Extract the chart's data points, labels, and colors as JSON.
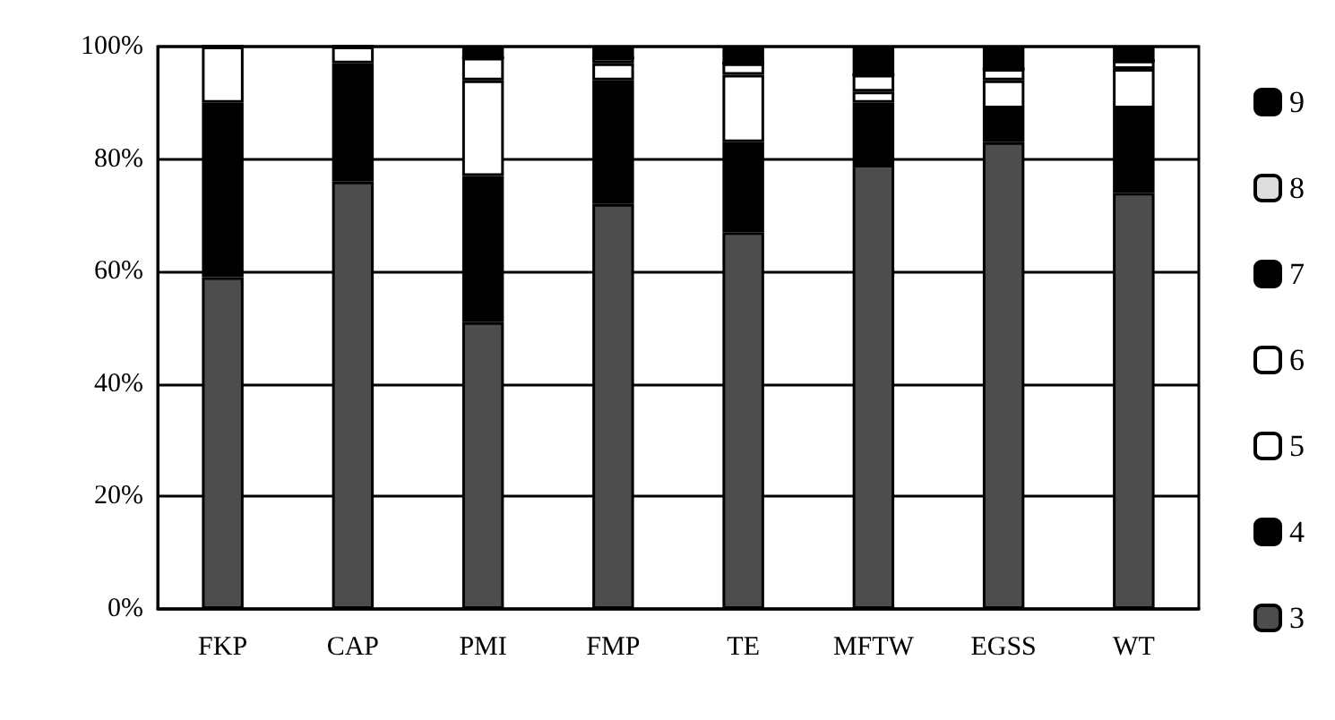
{
  "chart_data": {
    "type": "bar",
    "stacked": true,
    "categories": [
      "FKP",
      "CAP",
      "PMI",
      "FMP",
      "TE",
      "MFTW",
      "EGSS",
      "WT"
    ],
    "series": [
      {
        "name": "3",
        "color": "#4d4d4d",
        "values": [
          59,
          76,
          51,
          72,
          67,
          79,
          83,
          74
        ]
      },
      {
        "name": "4",
        "color": "#000000",
        "values": [
          31,
          21,
          26,
          22,
          16,
          11,
          6,
          15
        ]
      },
      {
        "name": "5",
        "color": "#ffffff",
        "values": [
          10,
          3,
          17,
          3,
          12,
          2,
          5,
          7
        ]
      },
      {
        "name": "6",
        "color": "#ffffff",
        "values": [
          0,
          0,
          4,
          1,
          2,
          3,
          2,
          1.5
        ]
      },
      {
        "name": "7",
        "color": "#000000",
        "values": [
          0,
          0,
          0,
          0,
          0,
          0,
          0,
          0
        ]
      },
      {
        "name": "8",
        "color": "#dddddd",
        "values": [
          0,
          0,
          0,
          0,
          0,
          0,
          0,
          0
        ]
      },
      {
        "name": "9",
        "color": "#000000",
        "values": [
          0,
          0,
          2,
          2,
          3,
          5,
          4,
          2.5
        ]
      }
    ],
    "ylim": [
      0,
      100
    ],
    "yticks": [
      {
        "value": 0,
        "label": "0%"
      },
      {
        "value": 20,
        "label": "20%"
      },
      {
        "value": 40,
        "label": "40%"
      },
      {
        "value": 60,
        "label": "60%"
      },
      {
        "value": 80,
        "label": "80%"
      },
      {
        "value": 100,
        "label": "100%"
      }
    ],
    "grid": "y",
    "legend": "right"
  }
}
